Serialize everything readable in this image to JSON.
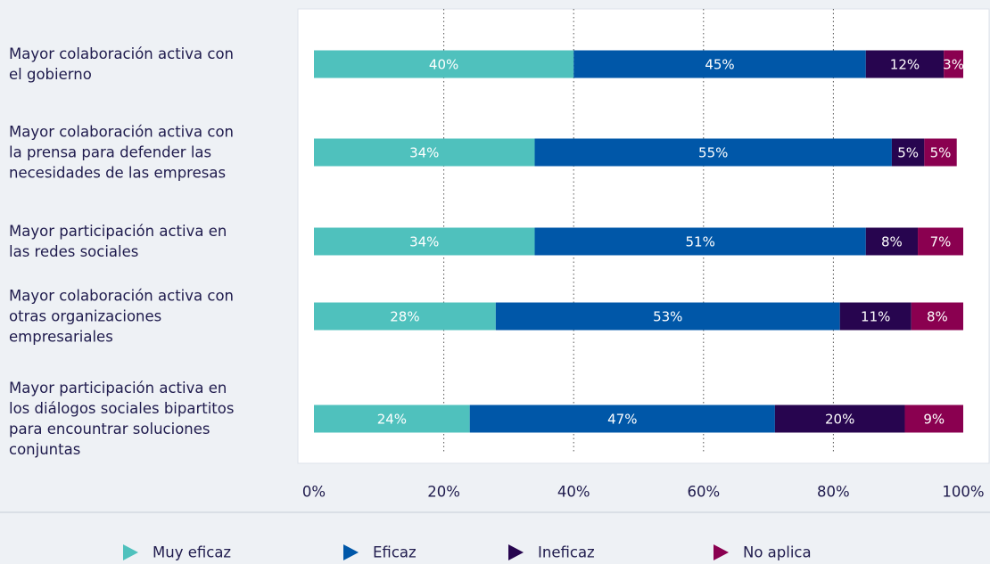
{
  "chart_data": {
    "type": "stacked-bar-horizontal",
    "categories": [
      "Mayor colaboración activa con el gobierno",
      "Mayor colaboración activa con la prensa para defender las necesidades de las empresas",
      "Mayor participación activa en las redes sociales",
      "Mayor colaboración activa con otras organizaciones empresariales",
      "Mayor participación activa en los diálogos sociales bipartitos para encountrar soluciones conjuntas"
    ],
    "series": [
      {
        "name": "Muy eficaz",
        "color": "#4fc1bd",
        "values": [
          40,
          34,
          34,
          28,
          24
        ],
        "value_labels": [
          "40%",
          "34%",
          "34%",
          "28%",
          "24%"
        ]
      },
      {
        "name": "Eficaz",
        "color": "#0057a8",
        "values": [
          45,
          55,
          51,
          53,
          47
        ],
        "value_labels": [
          "45%",
          "55%",
          "51%",
          "53%",
          "47%"
        ]
      },
      {
        "name": "Ineficaz",
        "color": "#27054f",
        "values": [
          12,
          5,
          8,
          11,
          20
        ],
        "value_labels": [
          "12%",
          "5%",
          "8%",
          "11%",
          "20%"
        ]
      },
      {
        "name": "No aplica",
        "color": "#8a0050",
        "values": [
          3,
          5,
          7,
          8,
          9
        ],
        "value_labels": [
          "3%",
          "5%",
          "7%",
          "8%",
          "9%"
        ]
      }
    ],
    "xlim": [
      0,
      100
    ],
    "xticks": [
      {
        "value": 0,
        "label": "0%"
      },
      {
        "value": 20,
        "label": "20%"
      },
      {
        "value": 40,
        "label": "40%"
      },
      {
        "value": 60,
        "label": "60%"
      },
      {
        "value": 80,
        "label": "80%"
      },
      {
        "value": 100,
        "label": "100%"
      }
    ],
    "grid": true,
    "legend": "bottom"
  }
}
